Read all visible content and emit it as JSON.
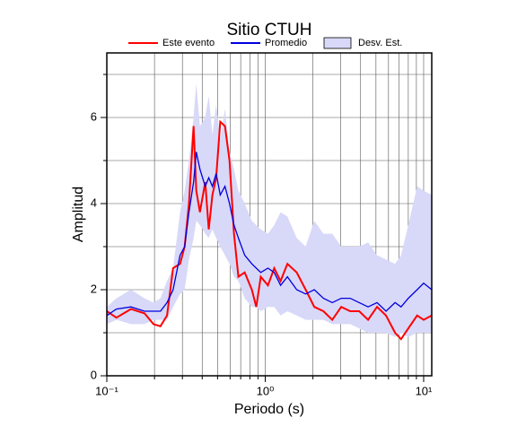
{
  "chart_data": {
    "type": "line",
    "title": "Sitio CTUH",
    "x_label": "Periodo (s)",
    "y_label": "Amplitud",
    "log_x": true,
    "grid": true,
    "xlim": [
      0.1,
      11.25
    ],
    "ylim": [
      0,
      7.5
    ],
    "xticks": [
      {
        "value": 0.1,
        "label": "10⁻¹"
      },
      {
        "value": 1,
        "label": "10⁰"
      },
      {
        "value": 10,
        "label": "10¹"
      }
    ],
    "minor_xticks": [
      0.2,
      0.3,
      0.4,
      0.5,
      0.6,
      0.7,
      0.8,
      0.9,
      2,
      3,
      4,
      5,
      6,
      7,
      8,
      9
    ],
    "yticks": [
      0,
      2,
      4,
      6
    ],
    "minor_yticks": [
      1,
      3,
      5,
      7
    ],
    "x": [
      0.1,
      0.115,
      0.142,
      0.173,
      0.197,
      0.218,
      0.24,
      0.262,
      0.29,
      0.31,
      0.33,
      0.353,
      0.367,
      0.387,
      0.418,
      0.44,
      0.464,
      0.49,
      0.52,
      0.557,
      0.595,
      0.635,
      0.677,
      0.742,
      0.823,
      0.878,
      0.937,
      1.04,
      1.14,
      1.25,
      1.38,
      1.58,
      1.8,
      2.04,
      2.33,
      2.65,
      3.02,
      3.44,
      3.92,
      4.46,
      5.08,
      5.79,
      6.6,
      7.2,
      8.0,
      9.1,
      10,
      11.25
    ],
    "band": {
      "name": "Desv. Est.",
      "color": "#d8d8f8",
      "upper": [
        1.6,
        1.8,
        2.0,
        1.8,
        1.7,
        1.8,
        2.2,
        2.5,
        3.8,
        4.3,
        5.0,
        6.0,
        6.8,
        5.8,
        6.0,
        6.5,
        5.6,
        6.3,
        5.5,
        6.2,
        5.2,
        4.8,
        4.3,
        4.0,
        3.6,
        3.5,
        3.4,
        3.3,
        3.5,
        3.8,
        3.7,
        3.2,
        3.0,
        3.6,
        3.3,
        3.3,
        3.0,
        3.0,
        3.0,
        3.1,
        2.8,
        2.7,
        2.6,
        2.8,
        3.5,
        4.4,
        4.3,
        4.2
      ],
      "lower": [
        1.2,
        1.3,
        1.2,
        1.2,
        1.3,
        1.3,
        1.3,
        1.6,
        1.9,
        2.0,
        2.7,
        3.2,
        3.6,
        3.5,
        3.3,
        3.2,
        3.4,
        3.2,
        3.0,
        2.8,
        2.6,
        2.3,
        2.2,
        1.8,
        1.6,
        1.6,
        1.5,
        1.6,
        1.6,
        1.4,
        1.5,
        1.4,
        1.3,
        1.3,
        1.3,
        1.2,
        1.2,
        1.2,
        1.1,
        1.0,
        1.0,
        1.0,
        0.9,
        1.0,
        0.9,
        1.0,
        1.0,
        1.0
      ]
    },
    "series": [
      {
        "name": "Este evento",
        "color": "#ff0000",
        "values": [
          1.5,
          1.35,
          1.55,
          1.45,
          1.2,
          1.15,
          1.4,
          2.5,
          2.6,
          3.0,
          4.0,
          5.8,
          4.3,
          3.8,
          4.5,
          3.4,
          4.2,
          4.6,
          5.9,
          5.8,
          5.0,
          3.3,
          2.3,
          2.4,
          2.0,
          1.6,
          2.3,
          2.1,
          2.5,
          2.2,
          2.6,
          2.4,
          2.0,
          1.6,
          1.5,
          1.3,
          1.6,
          1.5,
          1.5,
          1.3,
          1.6,
          1.4,
          1.0,
          0.85,
          1.1,
          1.4,
          1.3,
          1.4
        ]
      },
      {
        "name": "Promedio",
        "color": "#0000dd",
        "values": [
          1.4,
          1.55,
          1.6,
          1.5,
          1.5,
          1.5,
          1.7,
          2.0,
          2.8,
          3.0,
          3.8,
          4.5,
          5.2,
          4.8,
          4.4,
          4.6,
          4.4,
          4.7,
          4.2,
          4.4,
          4.0,
          3.5,
          3.2,
          2.8,
          2.6,
          2.5,
          2.4,
          2.5,
          2.4,
          2.1,
          2.3,
          2.0,
          1.9,
          2.0,
          1.8,
          1.7,
          1.8,
          1.8,
          1.7,
          1.6,
          1.7,
          1.5,
          1.7,
          1.6,
          1.8,
          2.0,
          2.15,
          2.0
        ]
      }
    ]
  }
}
